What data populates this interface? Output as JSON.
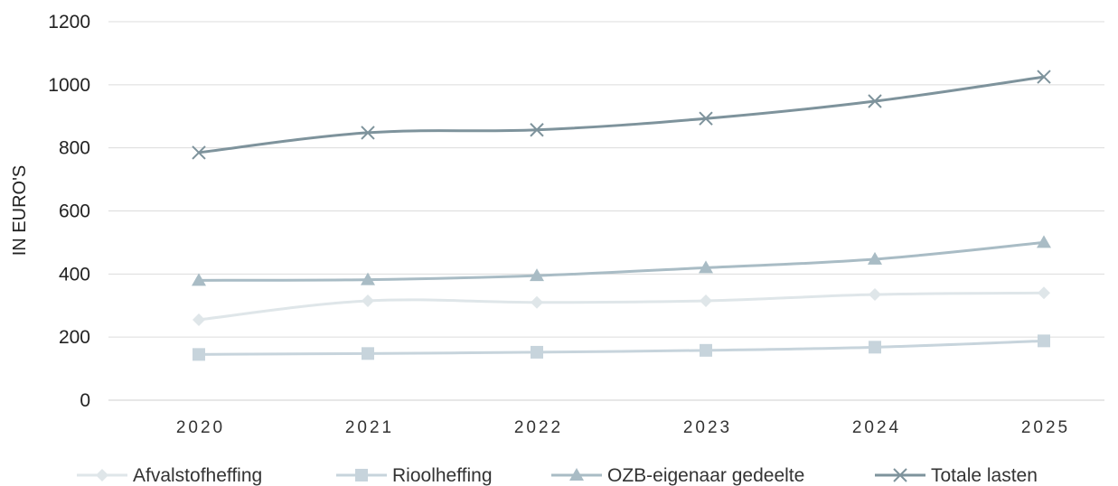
{
  "chart_data": {
    "type": "line",
    "title": "",
    "xlabel": "",
    "ylabel": "IN EURO'S",
    "ylim": [
      0,
      1200
    ],
    "yticks": [
      "0",
      "200",
      "400",
      "600",
      "800",
      "1000",
      "1200"
    ],
    "categories": [
      "2020",
      "2021",
      "2022",
      "2023",
      "2024",
      "2025"
    ],
    "grid": true,
    "legend_position": "bottom",
    "series": [
      {
        "name": "Afvalstofheffing",
        "values": [
          255,
          315,
          310,
          315,
          335,
          340
        ],
        "color": "#dfe6e9",
        "marker": "diamond"
      },
      {
        "name": "Rioolheffing",
        "values": [
          145,
          148,
          152,
          158,
          168,
          188
        ],
        "color": "#c7d4dc",
        "marker": "square"
      },
      {
        "name": "OZB-eigenaar gedeelte",
        "values": [
          380,
          382,
          395,
          420,
          447,
          500
        ],
        "color": "#a9bcc5",
        "marker": "triangle"
      },
      {
        "name": "Totale lasten",
        "values": [
          785,
          848,
          857,
          893,
          948,
          1025
        ],
        "color": "#7e939c",
        "marker": "x"
      }
    ]
  }
}
